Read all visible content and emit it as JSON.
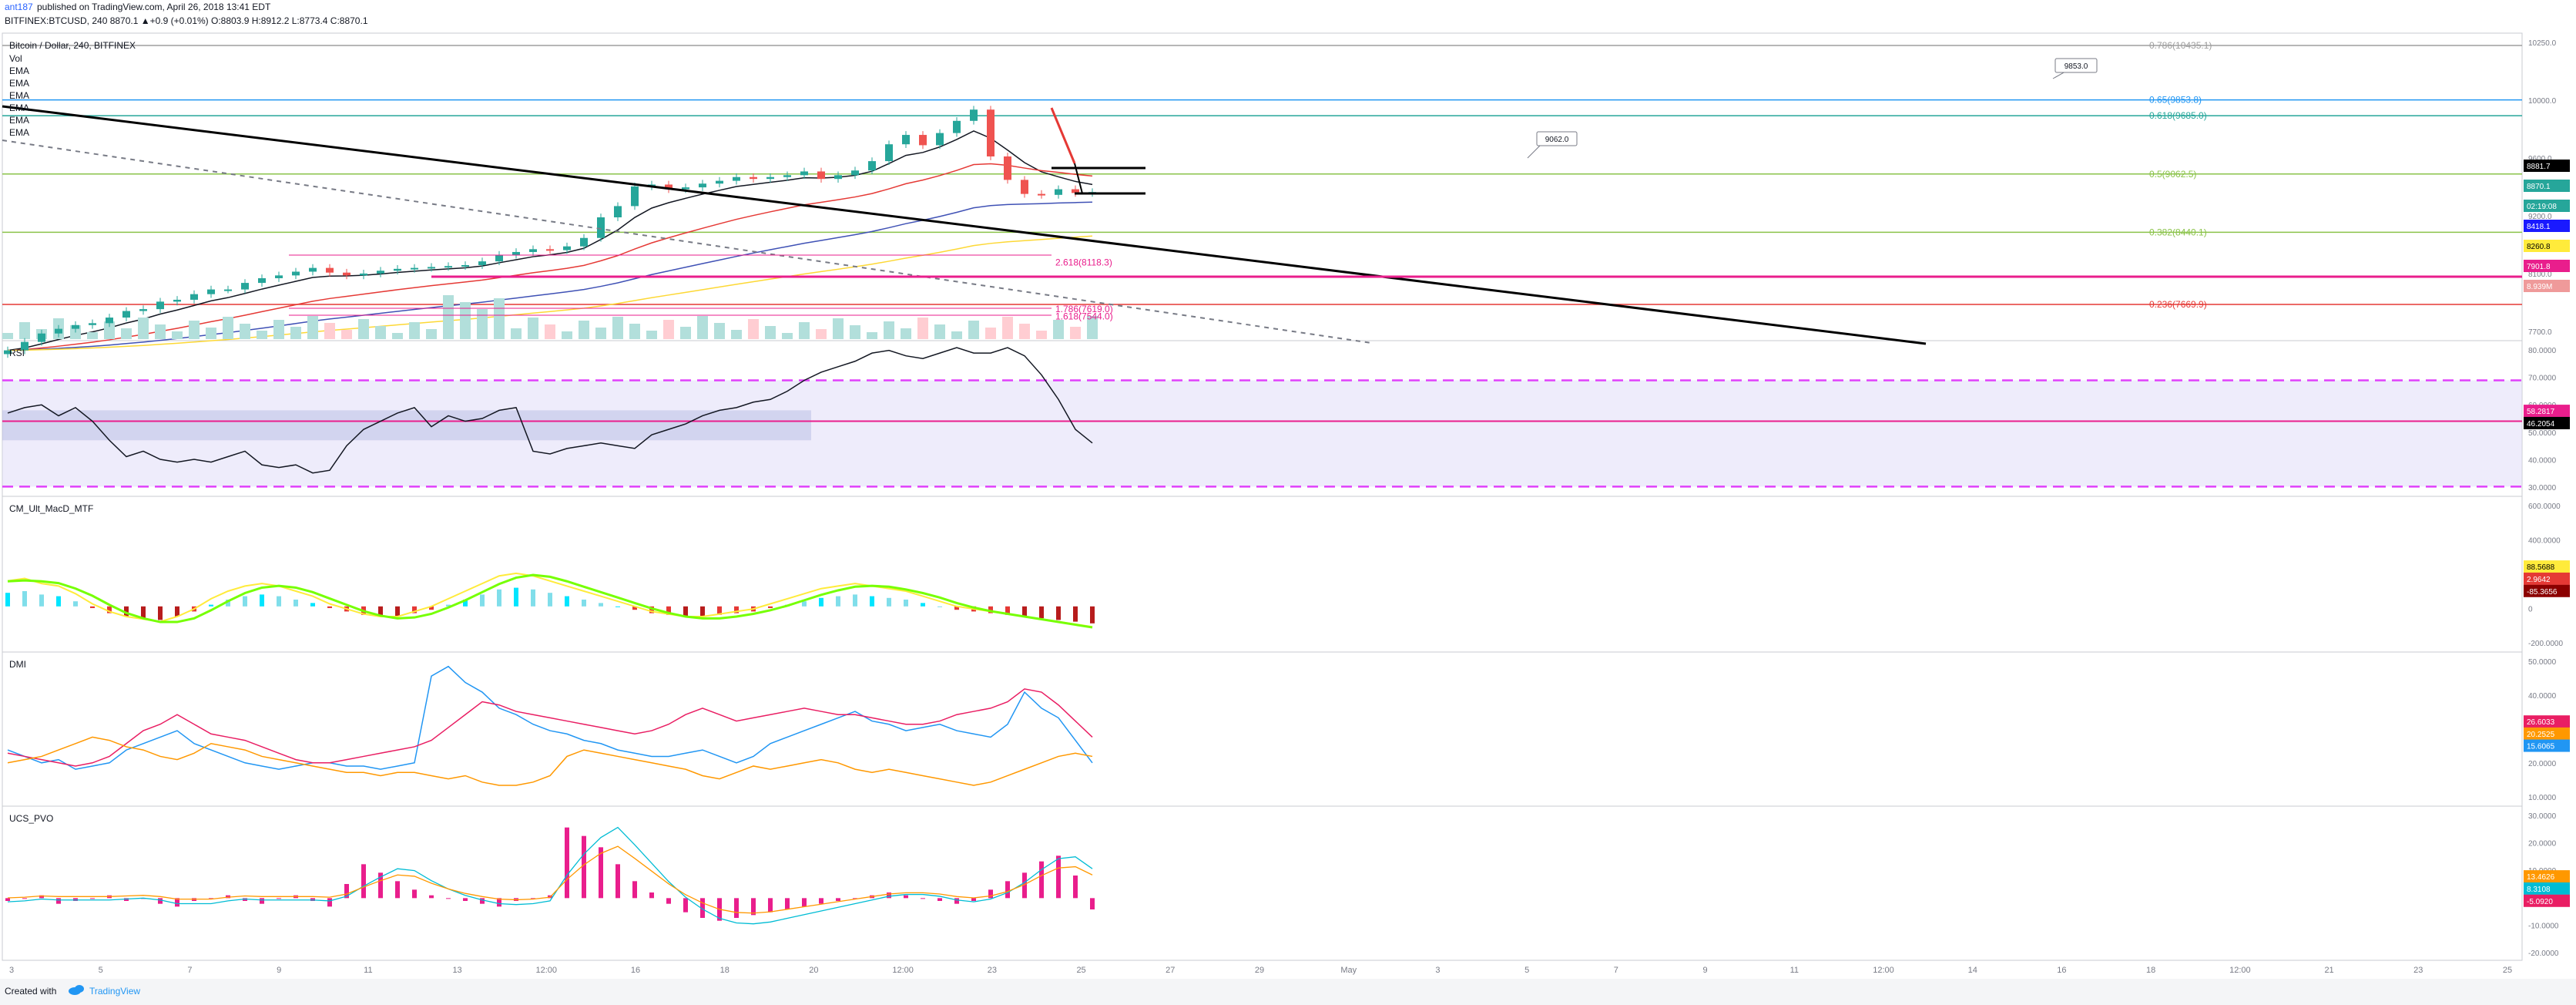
{
  "header": {
    "author": "ant187",
    "published": "published on TradingView.com, April 26, 2018 13:41 EDT",
    "symbol_line": "BITFINEX:BTCUSD, 240  8870.1  ▲+0.9 (+0.01%)  O:8803.9  H:8912.2  L:8773.4  C:8870.1"
  },
  "footer": {
    "created_with": "Created with",
    "brand": "TradingView"
  },
  "panes": {
    "main": {
      "title": "Bitcoin / Dollar, 240, BITFINEX",
      "labels": [
        "Vol",
        "EMA",
        "EMA",
        "EMA",
        "EMA",
        "EMA",
        "EMA"
      ]
    },
    "rsi": {
      "title": "RSI"
    },
    "macd": {
      "title": "CM_Ult_MacD_MTF"
    },
    "dmi": {
      "title": "DMI"
    },
    "pvo": {
      "title": "UCS_PVO"
    }
  },
  "x_axis": {
    "ticks": [
      "3",
      "5",
      "7",
      "9",
      "11",
      "13",
      "12:00",
      "16",
      "18",
      "20",
      "12:00",
      "23",
      "25",
      "27",
      "29",
      "May",
      "3",
      "5",
      "7",
      "9",
      "11",
      "12:00",
      "14",
      "16",
      "18",
      "12:00",
      "21",
      "23",
      "25"
    ]
  },
  "colors": {
    "up": "#26a69a",
    "down": "#ef5350",
    "fib_blue": "#2196f3",
    "fib_green": "#26a69a",
    "fib_lime": "#8bc34a",
    "fib_red": "#e53935",
    "magenta": "#e91e8c",
    "rsi_band": "#d9d4f7",
    "rsi_dash": "#e040fb"
  },
  "chart_data": [
    {
      "type": "candlestick",
      "title": "Bitcoin / Dollar, 240, BITFINEX",
      "ylim": [
        7300,
        10550
      ],
      "y_ticks": [
        "10250.0",
        "10000.0",
        "9600.0",
        "9200.0",
        "8100.0",
        "7700.0"
      ],
      "price_labels": [
        {
          "value": "8881.7",
          "color": "#000000"
        },
        {
          "value": "8870.1",
          "color": "#26a69a"
        },
        {
          "value": "02:19:08",
          "color": "#26a69a"
        },
        {
          "value": "8418.1",
          "color": "#1a1aff"
        },
        {
          "value": "8260.8",
          "color": "#ffeb3b"
        },
        {
          "value": "7901.8",
          "color": "#e91e8c"
        },
        {
          "value": "8.939M",
          "color": "#ef9a9a"
        }
      ],
      "fib_levels": [
        {
          "label": "0.786(10435.1)",
          "value": 10435.1,
          "color": "#9e9e9e"
        },
        {
          "label": "0.65(9853.8)",
          "value": 9853.8,
          "color": "#2196f3"
        },
        {
          "label": "0.618(9685.0)",
          "value": 9685.0,
          "color": "#26a69a"
        },
        {
          "label": "0.5(9062.5)",
          "value": 9062.5,
          "color": "#8bc34a"
        },
        {
          "label": "0.382(8440.1)",
          "value": 8440.1,
          "color": "#8bc34a"
        },
        {
          "label": "0.236(7669.9)",
          "value": 7669.9,
          "color": "#e53935"
        }
      ],
      "annotations": [
        {
          "text": "2.618(8118.3)",
          "value": 8118.3
        },
        {
          "text": "1.786(7619.0)",
          "value": 7619.0
        },
        {
          "text": "1.618(7544.0)",
          "value": 7544.0
        }
      ],
      "callouts": [
        "9853.0",
        "9062.0"
      ],
      "close": [
        7180,
        7270,
        7360,
        7410,
        7450,
        7470,
        7530,
        7600,
        7620,
        7700,
        7720,
        7780,
        7830,
        7830,
        7900,
        7950,
        7980,
        8020,
        8060,
        8010,
        7980,
        8000,
        8030,
        8050,
        8060,
        8070,
        8080,
        8090,
        8130,
        8200,
        8230,
        8260,
        8250,
        8290,
        8380,
        8600,
        8720,
        8930,
        8950,
        8900,
        8920,
        8960,
        8990,
        9030,
        9010,
        9030,
        9050,
        9090,
        9010,
        9050,
        9100,
        9200,
        9380,
        9480,
        9370,
        9500,
        9630,
        9750,
        9250,
        9000,
        8850,
        8840,
        8900,
        8860,
        8870
      ]
    },
    {
      "type": "line",
      "title": "RSI",
      "ylim": [
        28,
        84
      ],
      "y_ticks": [
        "80.0000",
        "70.0000",
        "60.0000",
        "50.0000",
        "40.0000",
        "30.0000"
      ],
      "levels": [
        70,
        55,
        31
      ],
      "last_labels": [
        {
          "value": "58.2817",
          "color": "#e91e8c"
        },
        {
          "value": "46.2054",
          "color": "#000000"
        }
      ],
      "values": [
        58,
        60,
        61,
        57,
        60,
        55,
        48,
        42,
        44,
        41,
        40,
        41,
        40,
        42,
        44,
        39,
        38,
        39,
        36,
        37,
        46,
        52,
        55,
        58,
        60,
        53,
        57,
        55,
        56,
        59,
        60,
        44,
        43,
        45,
        46,
        47,
        46,
        45,
        50,
        52,
        54,
        57,
        59,
        60,
        62,
        63,
        66,
        70,
        73,
        75,
        77,
        80,
        81,
        79,
        78,
        80,
        82,
        80,
        80,
        82,
        79,
        72,
        63,
        52,
        47
      ]
    },
    {
      "type": "histogram",
      "title": "CM_Ult_MacD_MTF",
      "ylim": [
        -260,
        640
      ],
      "y_ticks": [
        "600.0000",
        "400.0000",
        "200.0000",
        "0",
        "-200.0000"
      ],
      "last_labels": [
        {
          "value": "88.5688",
          "color": "#ffeb3b"
        },
        {
          "value": "2.9642",
          "color": "#e53935"
        },
        {
          "value": "-85.3656",
          "color": "#8b0000"
        }
      ],
      "hist": [
        80,
        90,
        70,
        60,
        30,
        -10,
        -40,
        -60,
        -70,
        -80,
        -60,
        -30,
        10,
        40,
        60,
        70,
        60,
        40,
        20,
        -10,
        -30,
        -50,
        -60,
        -60,
        -40,
        -20,
        10,
        40,
        70,
        100,
        110,
        100,
        80,
        60,
        40,
        20,
        0,
        -20,
        -40,
        -50,
        -60,
        -60,
        -50,
        -40,
        -30,
        -10,
        10,
        30,
        50,
        60,
        70,
        60,
        50,
        40,
        20,
        0,
        -20,
        -30,
        -40,
        -50,
        -60,
        -70,
        -80,
        -90,
        -100
      ]
    },
    {
      "type": "line",
      "title": "DMI",
      "ylim": [
        5,
        52
      ],
      "y_ticks": [
        "50.0000",
        "40.0000",
        "30.0000",
        "20.0000",
        "10.0000"
      ],
      "last_labels": [
        {
          "value": "26.6033",
          "color": "#e91e63"
        },
        {
          "value": "20.2525",
          "color": "#ff9800"
        },
        {
          "value": "15.6065",
          "color": "#2196f3"
        }
      ],
      "series": [
        {
          "values": [
            22,
            20,
            18,
            19,
            16,
            17,
            18,
            22,
            24,
            26,
            28,
            24,
            22,
            20,
            18,
            17,
            16,
            17,
            18,
            18,
            17,
            17,
            16,
            17,
            18,
            45,
            48,
            43,
            40,
            35,
            33,
            30,
            28,
            27,
            25,
            24,
            22,
            21,
            20,
            20,
            21,
            22,
            20,
            18,
            20,
            24,
            26,
            28,
            30,
            32,
            34,
            31,
            30,
            28,
            29,
            30,
            28,
            27,
            26,
            30,
            40,
            35,
            32,
            25,
            18
          ]
        },
        {
          "values": [
            21,
            20,
            19,
            18,
            17,
            18,
            20,
            24,
            28,
            30,
            33,
            30,
            27,
            26,
            25,
            23,
            21,
            19,
            18,
            18,
            19,
            20,
            21,
            22,
            23,
            25,
            29,
            33,
            37,
            36,
            34,
            33,
            32,
            31,
            30,
            29,
            28,
            27,
            28,
            30,
            33,
            35,
            33,
            31,
            32,
            33,
            34,
            35,
            34,
            33,
            33,
            32,
            31,
            30,
            30,
            31,
            33,
            34,
            35,
            37,
            41,
            40,
            36,
            31,
            26
          ]
        },
        {
          "values": [
            18,
            19,
            20,
            22,
            24,
            26,
            25,
            23,
            22,
            20,
            19,
            21,
            24,
            23,
            22,
            20,
            19,
            18,
            17,
            16,
            15,
            15,
            14,
            15,
            15,
            14,
            13,
            14,
            12,
            11,
            11,
            12,
            14,
            20,
            22,
            21,
            20,
            19,
            18,
            17,
            16,
            14,
            13,
            15,
            17,
            16,
            17,
            18,
            19,
            18,
            16,
            15,
            16,
            15,
            14,
            13,
            12,
            11,
            12,
            14,
            16,
            18,
            20,
            21,
            20
          ]
        }
      ]
    },
    {
      "type": "histogram",
      "title": "UCS_PVO",
      "ylim": [
        -22,
        32
      ],
      "y_ticks": [
        "30.0000",
        "20.0000",
        "10.0000",
        "0.0000",
        "-10.0000",
        "-20.0000"
      ],
      "last_labels": [
        {
          "value": "13.4626",
          "color": "#ff9800"
        },
        {
          "value": "8.3108",
          "color": "#00bcd4"
        },
        {
          "value": "-5.0920",
          "color": "#e91e63"
        }
      ],
      "hist": [
        -1,
        0,
        1,
        -2,
        -1,
        0,
        1,
        -1,
        0,
        -2,
        -3,
        -1,
        0,
        1,
        -1,
        -2,
        0,
        1,
        -1,
        -3,
        5,
        12,
        9,
        6,
        3,
        1,
        0,
        -1,
        -2,
        -3,
        -1,
        0,
        1,
        25,
        22,
        18,
        12,
        6,
        2,
        -2,
        -5,
        -7,
        -8,
        -7,
        -6,
        -5,
        -4,
        -3,
        -2,
        -1,
        0,
        1,
        2,
        1,
        0,
        -1,
        -2,
        -1,
        3,
        6,
        9,
        13,
        15,
        8,
        -4
      ]
    }
  ]
}
